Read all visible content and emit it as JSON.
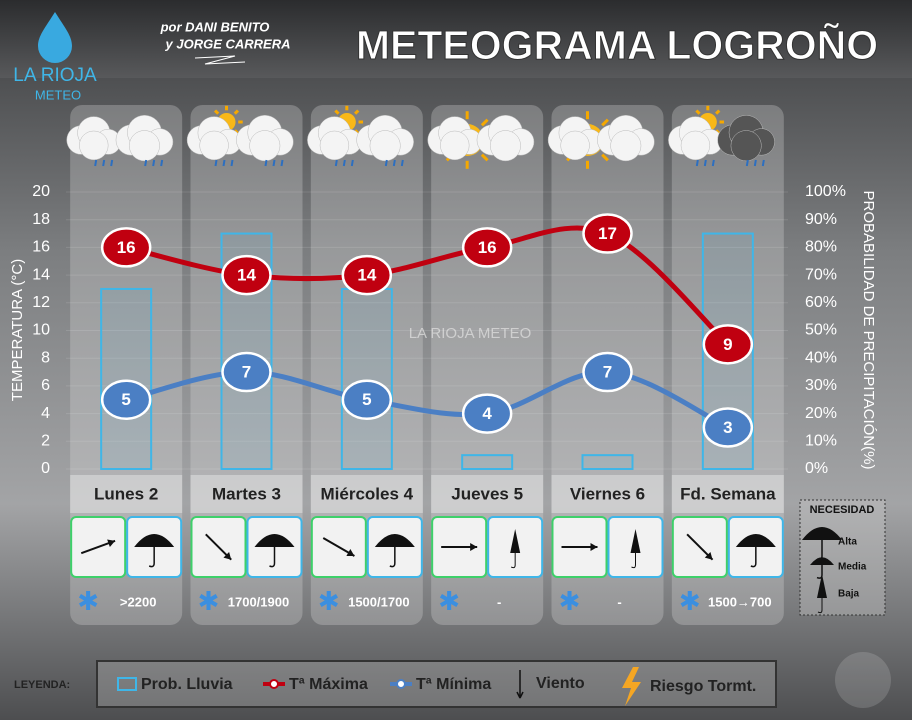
{
  "header": {
    "title": "METEOGRAMA LOGROÑO",
    "credit_1": "por DANI BENITO",
    "credit_2": "y JORGE CARRERA",
    "logo_1": "LA RIOJA",
    "logo_2": "METEO",
    "watermark": "LA RIOJA METEO"
  },
  "chart_data": {
    "type": "combo",
    "categories": [
      "Lunes 2",
      "Martes 3",
      "Miércoles 4",
      "Jueves 5",
      "Viernes 6",
      "Fd. Semana"
    ],
    "series": [
      {
        "name": "Prob. Lluvia",
        "type": "bar",
        "axis": "y2",
        "color": "#3fb6e8",
        "values": [
          65,
          85,
          65,
          5,
          5,
          85
        ]
      },
      {
        "name": "Tª Máxima",
        "type": "line",
        "color": "#c00010",
        "values": [
          16,
          14,
          14,
          16,
          17,
          9
        ]
      },
      {
        "name": "Tª Mínima",
        "type": "line",
        "color": "#4b7fc4",
        "values": [
          5,
          7,
          5,
          4,
          7,
          3
        ]
      }
    ],
    "ylabel": "TEMPERATURA (°C)",
    "ylim": [
      0,
      20
    ],
    "yticks": [
      0,
      2,
      4,
      6,
      8,
      10,
      12,
      14,
      16,
      18,
      20
    ],
    "y2label": "PROBABILIDAD DE PRECIPITACIÓN(%)",
    "y2lim": [
      0,
      100
    ],
    "y2ticks": [
      {
        "value": 0,
        "label": "0%"
      },
      {
        "value": 10,
        "label": "10%"
      },
      {
        "value": 20,
        "label": "20%"
      },
      {
        "value": 30,
        "label": "30%"
      },
      {
        "value": 40,
        "label": "40%"
      },
      {
        "value": 50,
        "label": "50%"
      },
      {
        "value": 60,
        "label": "60%"
      },
      {
        "value": 70,
        "label": "70%"
      },
      {
        "value": 80,
        "label": "80%"
      },
      {
        "value": 90,
        "label": "90%"
      },
      {
        "value": 100,
        "label": "100%"
      }
    ],
    "grid": true
  },
  "snow_levels": [
    ">2200",
    "1700/1900",
    "1500/1700",
    "-",
    "-",
    "1500→700"
  ],
  "need_legend": {
    "title": "NECESIDAD",
    "items": [
      "Alta",
      "Media",
      "Baja"
    ]
  },
  "legend": {
    "title": "LEYENDA:",
    "extra": [
      "Viento",
      "Riesgo Tormt."
    ]
  }
}
